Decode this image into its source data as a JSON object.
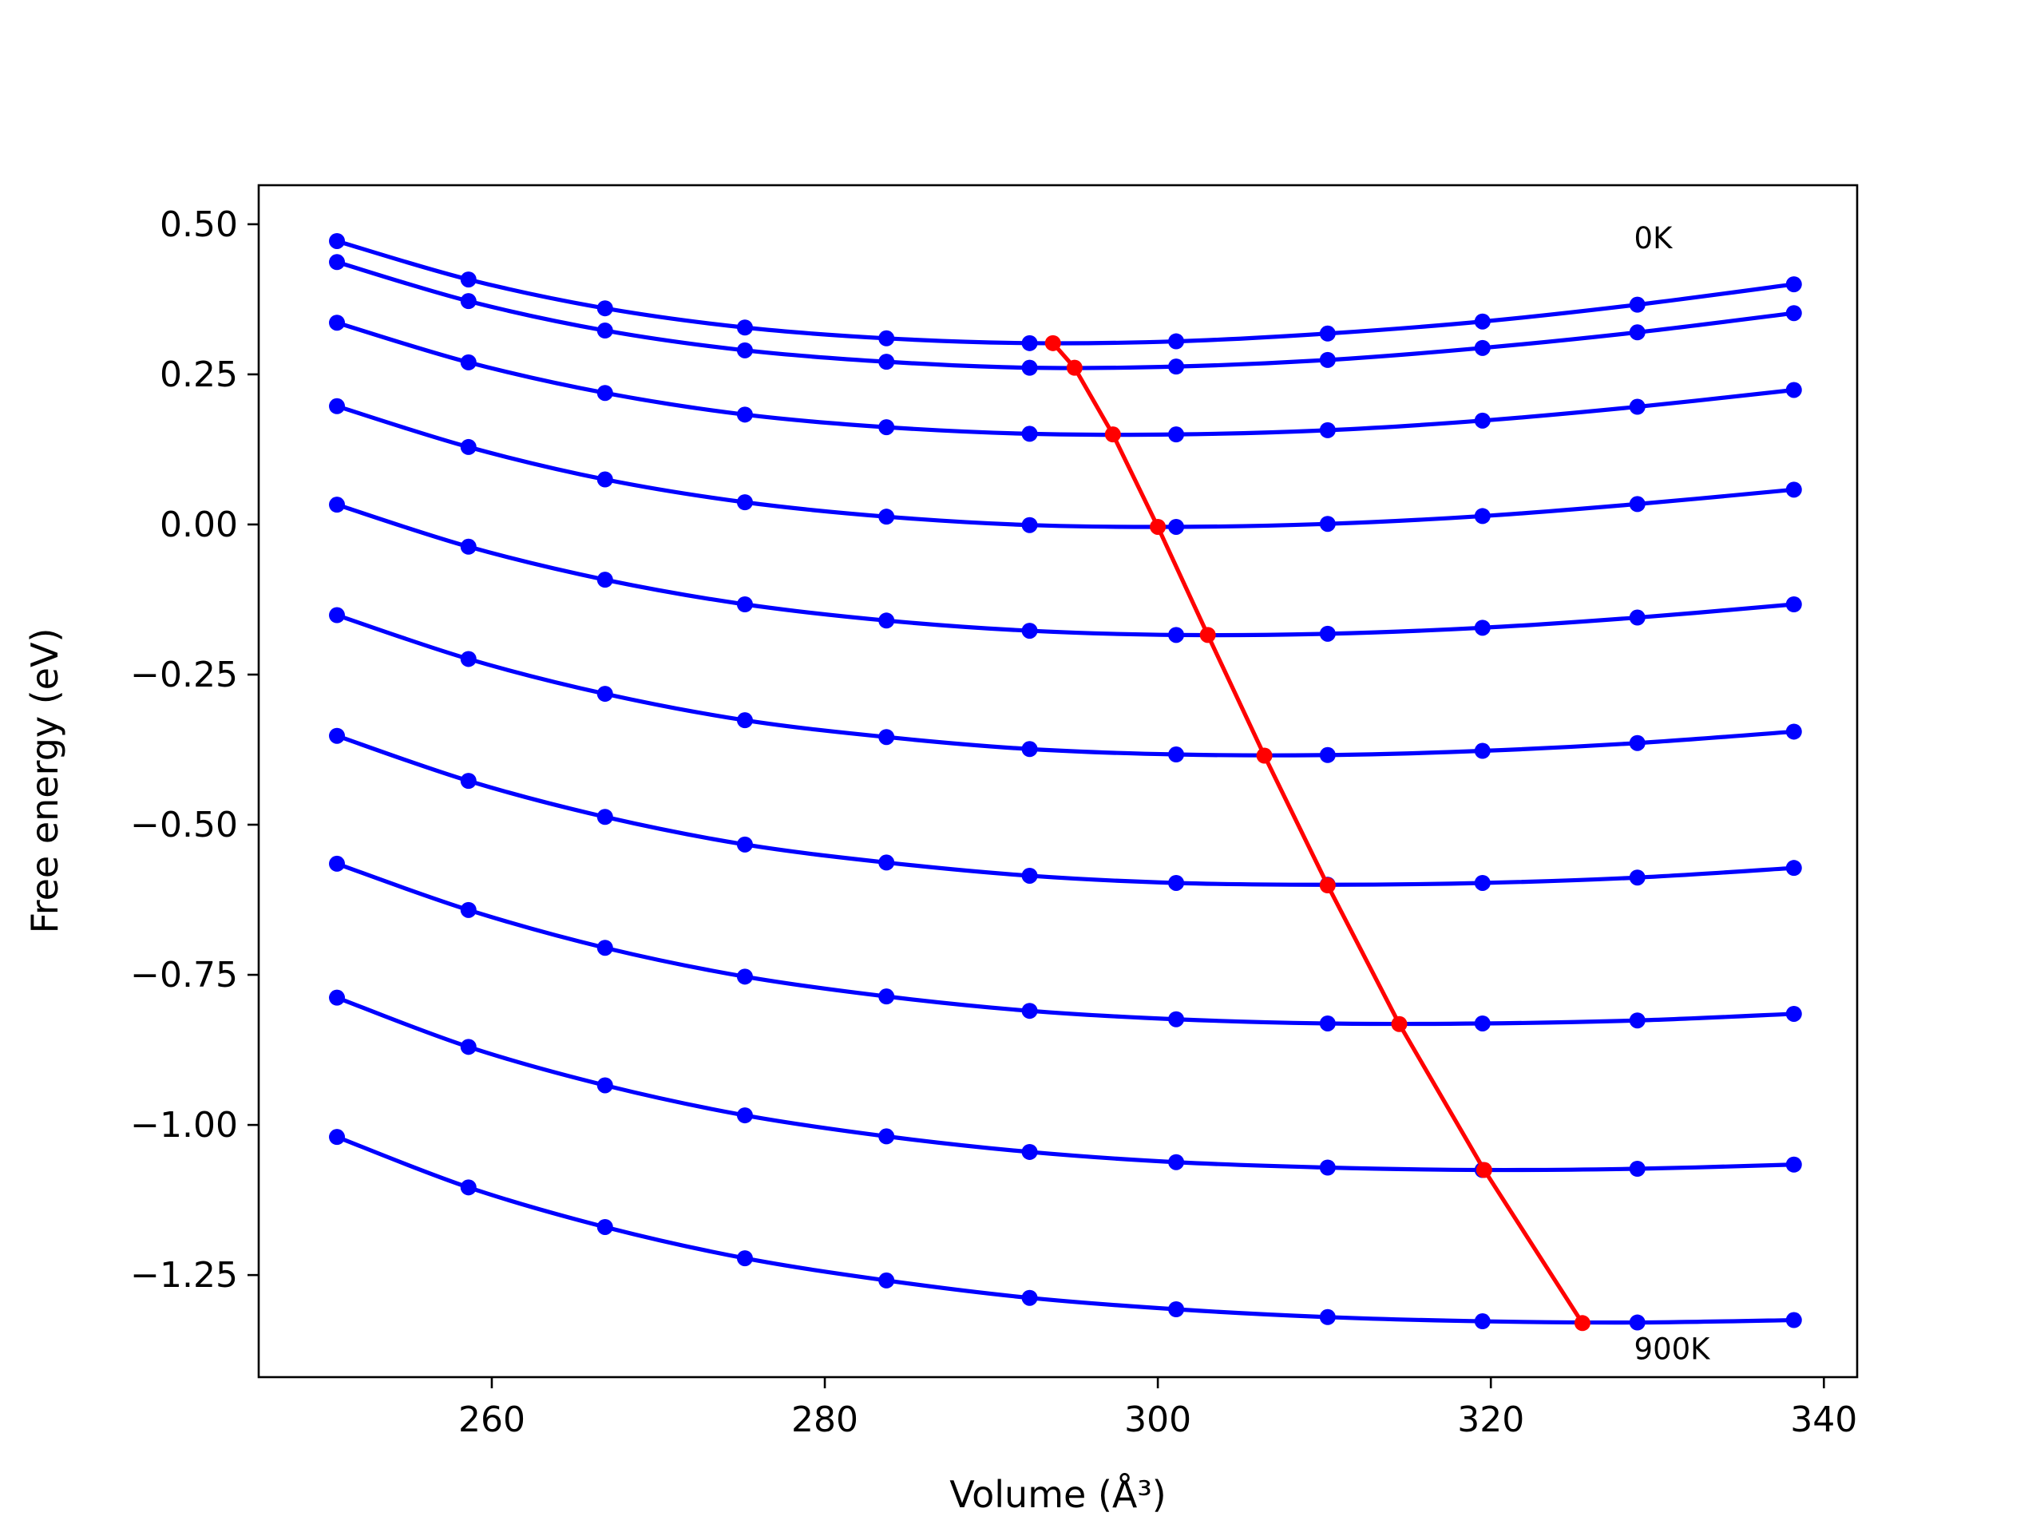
{
  "chart_data": {
    "type": "line",
    "xlabel": "Volume (Å³)",
    "ylabel": "Free energy (eV)",
    "xlim": [
      246,
      342
    ],
    "ylim": [
      -1.42,
      0.565
    ],
    "xticks": [
      {
        "value": 260,
        "label": "260"
      },
      {
        "value": 280,
        "label": "280"
      },
      {
        "value": 300,
        "label": "300"
      },
      {
        "value": 320,
        "label": "320"
      },
      {
        "value": 340,
        "label": "340"
      }
    ],
    "yticks": [
      {
        "value": 0.5,
        "label": "0.50"
      },
      {
        "value": 0.25,
        "label": "0.25"
      },
      {
        "value": 0.0,
        "label": "0.00"
      },
      {
        "value": -0.25,
        "label": "−0.25"
      },
      {
        "value": -0.5,
        "label": "−0.50"
      },
      {
        "value": -0.75,
        "label": "−0.75"
      },
      {
        "value": -1.0,
        "label": "−1.00"
      },
      {
        "value": -1.25,
        "label": "−1.25"
      }
    ],
    "grid": false,
    "x": [
      250.7,
      258.6,
      266.8,
      275.2,
      283.7,
      292.3,
      301.1,
      310.2,
      319.5,
      328.8,
      338.2
    ],
    "series": [
      {
        "color": "#0000ff",
        "values": [
          0.472,
          0.408,
          0.36,
          0.328,
          0.31,
          0.302,
          0.305,
          0.318,
          0.338,
          0.366,
          0.4
        ]
      },
      {
        "color": "#0000ff",
        "values": [
          0.437,
          0.372,
          0.323,
          0.29,
          0.271,
          0.261,
          0.263,
          0.274,
          0.294,
          0.32,
          0.352
        ]
      },
      {
        "color": "#0000ff",
        "values": [
          0.336,
          0.27,
          0.219,
          0.183,
          0.162,
          0.151,
          0.15,
          0.157,
          0.173,
          0.196,
          0.224
        ]
      },
      {
        "color": "#0000ff",
        "values": [
          0.197,
          0.129,
          0.075,
          0.037,
          0.013,
          -0.001,
          -0.004,
          0.001,
          0.014,
          0.034,
          0.058
        ]
      },
      {
        "color": "#0000ff",
        "values": [
          0.033,
          -0.037,
          -0.092,
          -0.133,
          -0.16,
          -0.177,
          -0.184,
          -0.182,
          -0.172,
          -0.155,
          -0.133
        ]
      },
      {
        "color": "#0000ff",
        "values": [
          -0.151,
          -0.224,
          -0.282,
          -0.326,
          -0.354,
          -0.374,
          -0.383,
          -0.384,
          -0.377,
          -0.364,
          -0.345
        ]
      },
      {
        "color": "#0000ff",
        "values": [
          -0.352,
          -0.427,
          -0.487,
          -0.533,
          -0.563,
          -0.585,
          -0.597,
          -0.6,
          -0.597,
          -0.588,
          -0.572
        ]
      },
      {
        "color": "#0000ff",
        "values": [
          -0.565,
          -0.642,
          -0.705,
          -0.753,
          -0.786,
          -0.81,
          -0.824,
          -0.831,
          -0.831,
          -0.826,
          -0.815
        ]
      },
      {
        "color": "#0000ff",
        "values": [
          -0.788,
          -0.87,
          -0.934,
          -0.984,
          -1.019,
          -1.045,
          -1.062,
          -1.071,
          -1.075,
          -1.073,
          -1.066
        ]
      },
      {
        "color": "#0000ff",
        "values": [
          -1.02,
          -1.104,
          -1.17,
          -1.222,
          -1.259,
          -1.288,
          -1.307,
          -1.32,
          -1.327,
          -1.329,
          -1.325
        ]
      }
    ],
    "minima": {
      "color": "#ff0000",
      "x": [
        293.7,
        295.0,
        297.3,
        300.0,
        303.0,
        306.4,
        310.2,
        314.5,
        319.6,
        325.5
      ],
      "y": [
        0.302,
        0.261,
        0.15,
        -0.004,
        -0.184,
        -0.385,
        -0.601,
        -0.832,
        -1.075,
        -1.33
      ]
    },
    "annotations": [
      {
        "text": "0K",
        "x": 328.6,
        "y": 0.46
      },
      {
        "text": "900K",
        "x": 328.6,
        "y": -1.39
      }
    ]
  }
}
